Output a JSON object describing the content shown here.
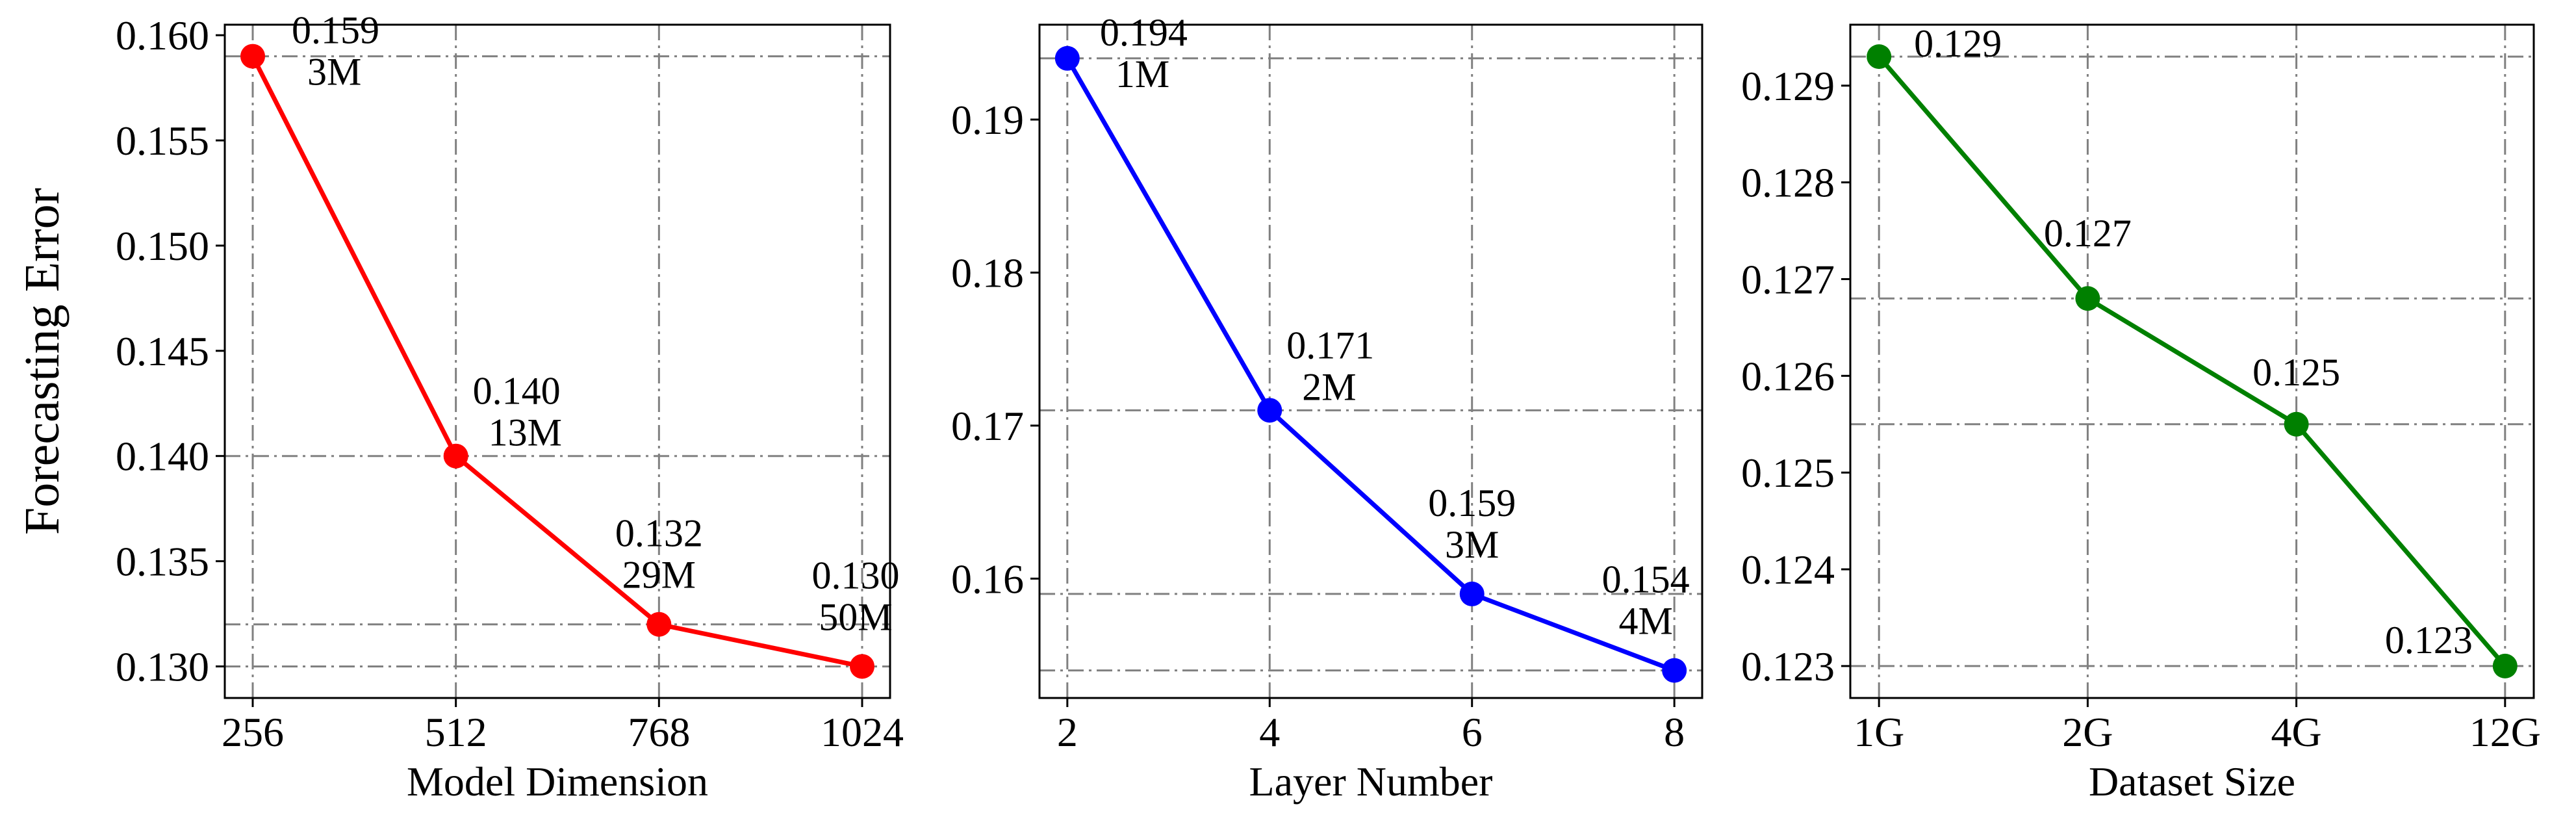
{
  "chart_data": [
    {
      "type": "line",
      "ylabel": "Forecasting Error",
      "xlabel": "Model Dimension",
      "categories": [
        "256",
        "512",
        "768",
        "1024"
      ],
      "values": [
        0.159,
        0.14,
        0.132,
        0.13
      ],
      "annotations": [
        {
          "value": "0.159",
          "params": "3M"
        },
        {
          "value": "0.140",
          "params": "13M"
        },
        {
          "value": "0.132",
          "params": "29M"
        },
        {
          "value": "0.130",
          "params": "50M"
        }
      ],
      "yticks": [
        "0.130",
        "0.135",
        "0.140",
        "0.145",
        "0.150",
        "0.155",
        "0.160"
      ],
      "ylim": [
        0.1285,
        0.1605
      ],
      "color": "#ff0000",
      "grid": true
    },
    {
      "type": "line",
      "ylabel": "",
      "xlabel": "Layer Number",
      "categories": [
        "2",
        "4",
        "6",
        "8"
      ],
      "values": [
        0.194,
        0.171,
        0.159,
        0.154
      ],
      "annotations": [
        {
          "value": "0.194",
          "params": "1M"
        },
        {
          "value": "0.171",
          "params": "2M"
        },
        {
          "value": "0.159",
          "params": "3M"
        },
        {
          "value": "0.154",
          "params": "4M"
        }
      ],
      "yticks": [
        "0.16",
        "0.17",
        "0.18",
        "0.19"
      ],
      "ylim": [
        0.1522,
        0.1962
      ],
      "color": "#0000ff",
      "grid": true
    },
    {
      "type": "line",
      "ylabel": "",
      "xlabel": "Dataset Size",
      "categories": [
        "1G",
        "2G",
        "4G",
        "12G"
      ],
      "values": [
        0.1293,
        0.1268,
        0.1255,
        0.123
      ],
      "annotations": [
        {
          "value": "0.129",
          "params": ""
        },
        {
          "value": "0.127",
          "params": ""
        },
        {
          "value": "0.125",
          "params": ""
        },
        {
          "value": "0.123",
          "params": ""
        }
      ],
      "yticks": [
        "0.123",
        "0.124",
        "0.125",
        "0.126",
        "0.127",
        "0.128",
        "0.129"
      ],
      "ylim": [
        0.12267,
        0.12963
      ],
      "color": "#008000",
      "grid": true
    }
  ]
}
